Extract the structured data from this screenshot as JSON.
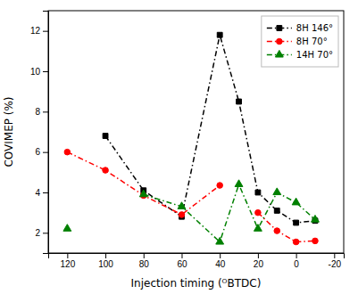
{
  "chart_data": {
    "type": "line",
    "x": [
      120,
      100,
      80,
      60,
      40,
      30,
      20,
      10,
      0,
      -10
    ],
    "series": [
      {
        "name": "8H 146°",
        "color": "black",
        "marker": "square",
        "line_style": "dashdot",
        "values": [
          null,
          6.8,
          4.1,
          2.8,
          11.8,
          8.5,
          4.0,
          3.1,
          2.5,
          2.6
        ]
      },
      {
        "name": "8H 70°",
        "color": "red",
        "marker": "circle",
        "line_style": "dashdot",
        "values": [
          6.0,
          5.1,
          3.85,
          2.9,
          4.35,
          null,
          3.0,
          2.1,
          1.55,
          1.6
        ]
      },
      {
        "name": "14H 70°",
        "color": "green",
        "marker": "triangle",
        "line_style": "dashdot",
        "values": [
          2.2,
          null,
          3.9,
          3.3,
          1.55,
          4.4,
          2.2,
          4.0,
          3.5,
          2.65
        ]
      }
    ],
    "xlabel": "Injection timing (ᴼBTDC)",
    "ylabel": "COVIMEP (%)",
    "xlim": [
      130,
      -25
    ],
    "ylim": [
      1.0,
      13.0
    ],
    "xticks": [
      120,
      100,
      80,
      60,
      40,
      20,
      0,
      -20
    ],
    "yticks": [
      2,
      4,
      6,
      8,
      10,
      12
    ],
    "legend": "upper right",
    "grid": false
  }
}
